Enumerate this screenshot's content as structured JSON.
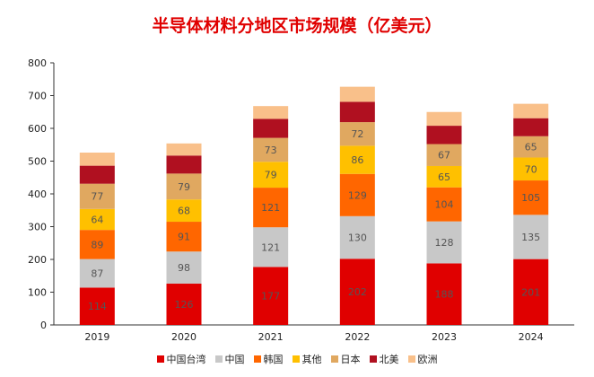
{
  "chart_data": {
    "type": "bar",
    "stacked": true,
    "title": "半导体材料分地区市场规模（亿美元）",
    "categories": [
      "2019",
      "2020",
      "2021",
      "2022",
      "2023",
      "2024"
    ],
    "ylim": [
      0,
      800
    ],
    "yticks": [
      0,
      100,
      200,
      300,
      400,
      500,
      600,
      700,
      800
    ],
    "grid": false,
    "legend_position": "bottom",
    "series": [
      {
        "name": "中国台湾",
        "color": "#e00000",
        "values": [
          114,
          126,
          177,
          202,
          188,
          201
        ]
      },
      {
        "name": "中国",
        "color": "#c8c8c8",
        "values": [
          87,
          98,
          121,
          130,
          128,
          135
        ]
      },
      {
        "name": "韩国",
        "color": "#ff6600",
        "values": [
          89,
          91,
          121,
          129,
          104,
          105
        ]
      },
      {
        "name": "其他",
        "color": "#ffc000",
        "values": [
          64,
          68,
          79,
          86,
          65,
          70
        ]
      },
      {
        "name": "日本",
        "color": "#e0a860",
        "values": [
          77,
          79,
          73,
          72,
          67,
          65
        ]
      },
      {
        "name": "北美",
        "color": "#b01020",
        "values": [
          55,
          55,
          58,
          62,
          56,
          55
        ]
      },
      {
        "name": "欧洲",
        "color": "#f9c08a",
        "values": [
          40,
          37,
          39,
          46,
          42,
          44
        ]
      }
    ],
    "labeled_series": [
      0,
      1,
      2,
      3,
      4
    ]
  }
}
